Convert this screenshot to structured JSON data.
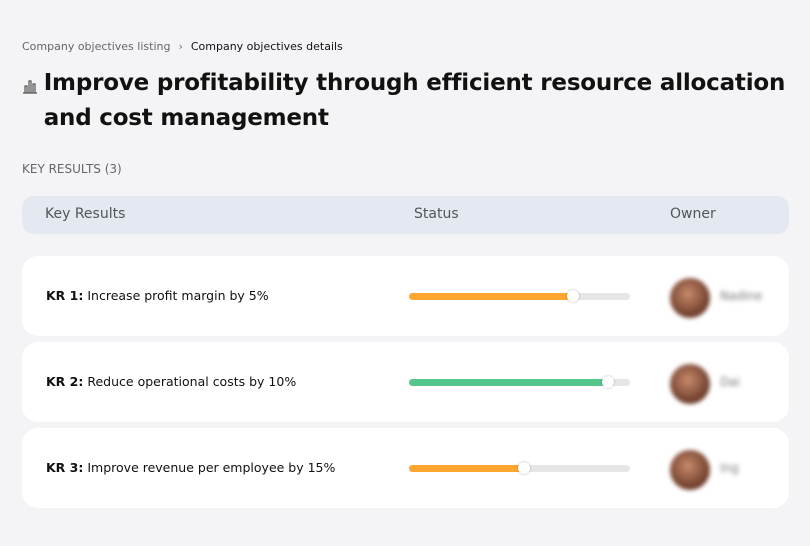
{
  "breadcrumb": {
    "parent": "Company objectives listing",
    "separator": "›",
    "current": "Company objectives details"
  },
  "title": "Improve profitability through efficient resource allocation and cost management",
  "title_icon": "bar-chart-icon",
  "section_label": "KEY RESULTS (3)",
  "table": {
    "headers": [
      "Key Results",
      "Status",
      "Owner"
    ]
  },
  "key_results": [
    {
      "id": "KR 1:",
      "text": "Increase profit margin by 5%",
      "progress": 74,
      "color": "#ffa630",
      "owner": "Nadine"
    },
    {
      "id": "KR 2:",
      "text": "Reduce operational costs by 10%",
      "progress": 90,
      "color": "#55c58e",
      "owner": "Dai"
    },
    {
      "id": "KR 3:",
      "text": "Improve revenue per employee by 15%",
      "progress": 52,
      "color": "#ffa630",
      "owner": "Ing"
    }
  ]
}
